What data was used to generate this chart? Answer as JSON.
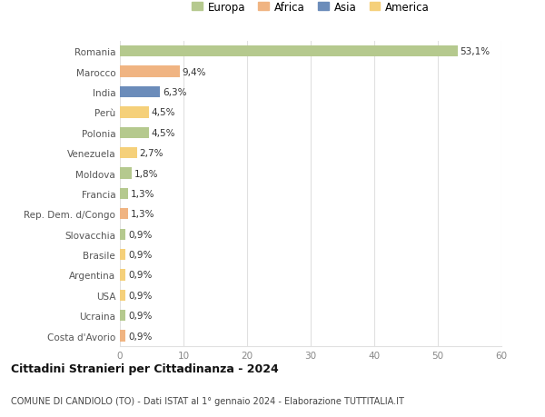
{
  "categories": [
    "Romania",
    "Marocco",
    "India",
    "Perù",
    "Polonia",
    "Venezuela",
    "Moldova",
    "Francia",
    "Rep. Dem. d/Congo",
    "Slovacchia",
    "Brasile",
    "Argentina",
    "USA",
    "Ucraina",
    "Costa d'Avorio"
  ],
  "values": [
    53.1,
    9.4,
    6.3,
    4.5,
    4.5,
    2.7,
    1.8,
    1.3,
    1.3,
    0.9,
    0.9,
    0.9,
    0.9,
    0.9,
    0.9
  ],
  "labels": [
    "53,1%",
    "9,4%",
    "6,3%",
    "4,5%",
    "4,5%",
    "2,7%",
    "1,8%",
    "1,3%",
    "1,3%",
    "0,9%",
    "0,9%",
    "0,9%",
    "0,9%",
    "0,9%",
    "0,9%"
  ],
  "continents": [
    "Europa",
    "Africa",
    "Asia",
    "America",
    "Europa",
    "America",
    "Europa",
    "Europa",
    "Africa",
    "Europa",
    "America",
    "America",
    "America",
    "Europa",
    "Africa"
  ],
  "continent_colors": {
    "Europa": "#b5c98e",
    "Africa": "#f0b482",
    "Asia": "#6b8cba",
    "America": "#f5d07a"
  },
  "legend_order": [
    "Europa",
    "Africa",
    "Asia",
    "America"
  ],
  "title": "Cittadini Stranieri per Cittadinanza - 2024",
  "subtitle": "COMUNE DI CANDIOLO (TO) - Dati ISTAT al 1° gennaio 2024 - Elaborazione TUTTITALIA.IT",
  "xlim": [
    0,
    60
  ],
  "xticks": [
    0,
    10,
    20,
    30,
    40,
    50,
    60
  ],
  "background_color": "#ffffff",
  "grid_color": "#e0e0e0",
  "bar_height": 0.55
}
